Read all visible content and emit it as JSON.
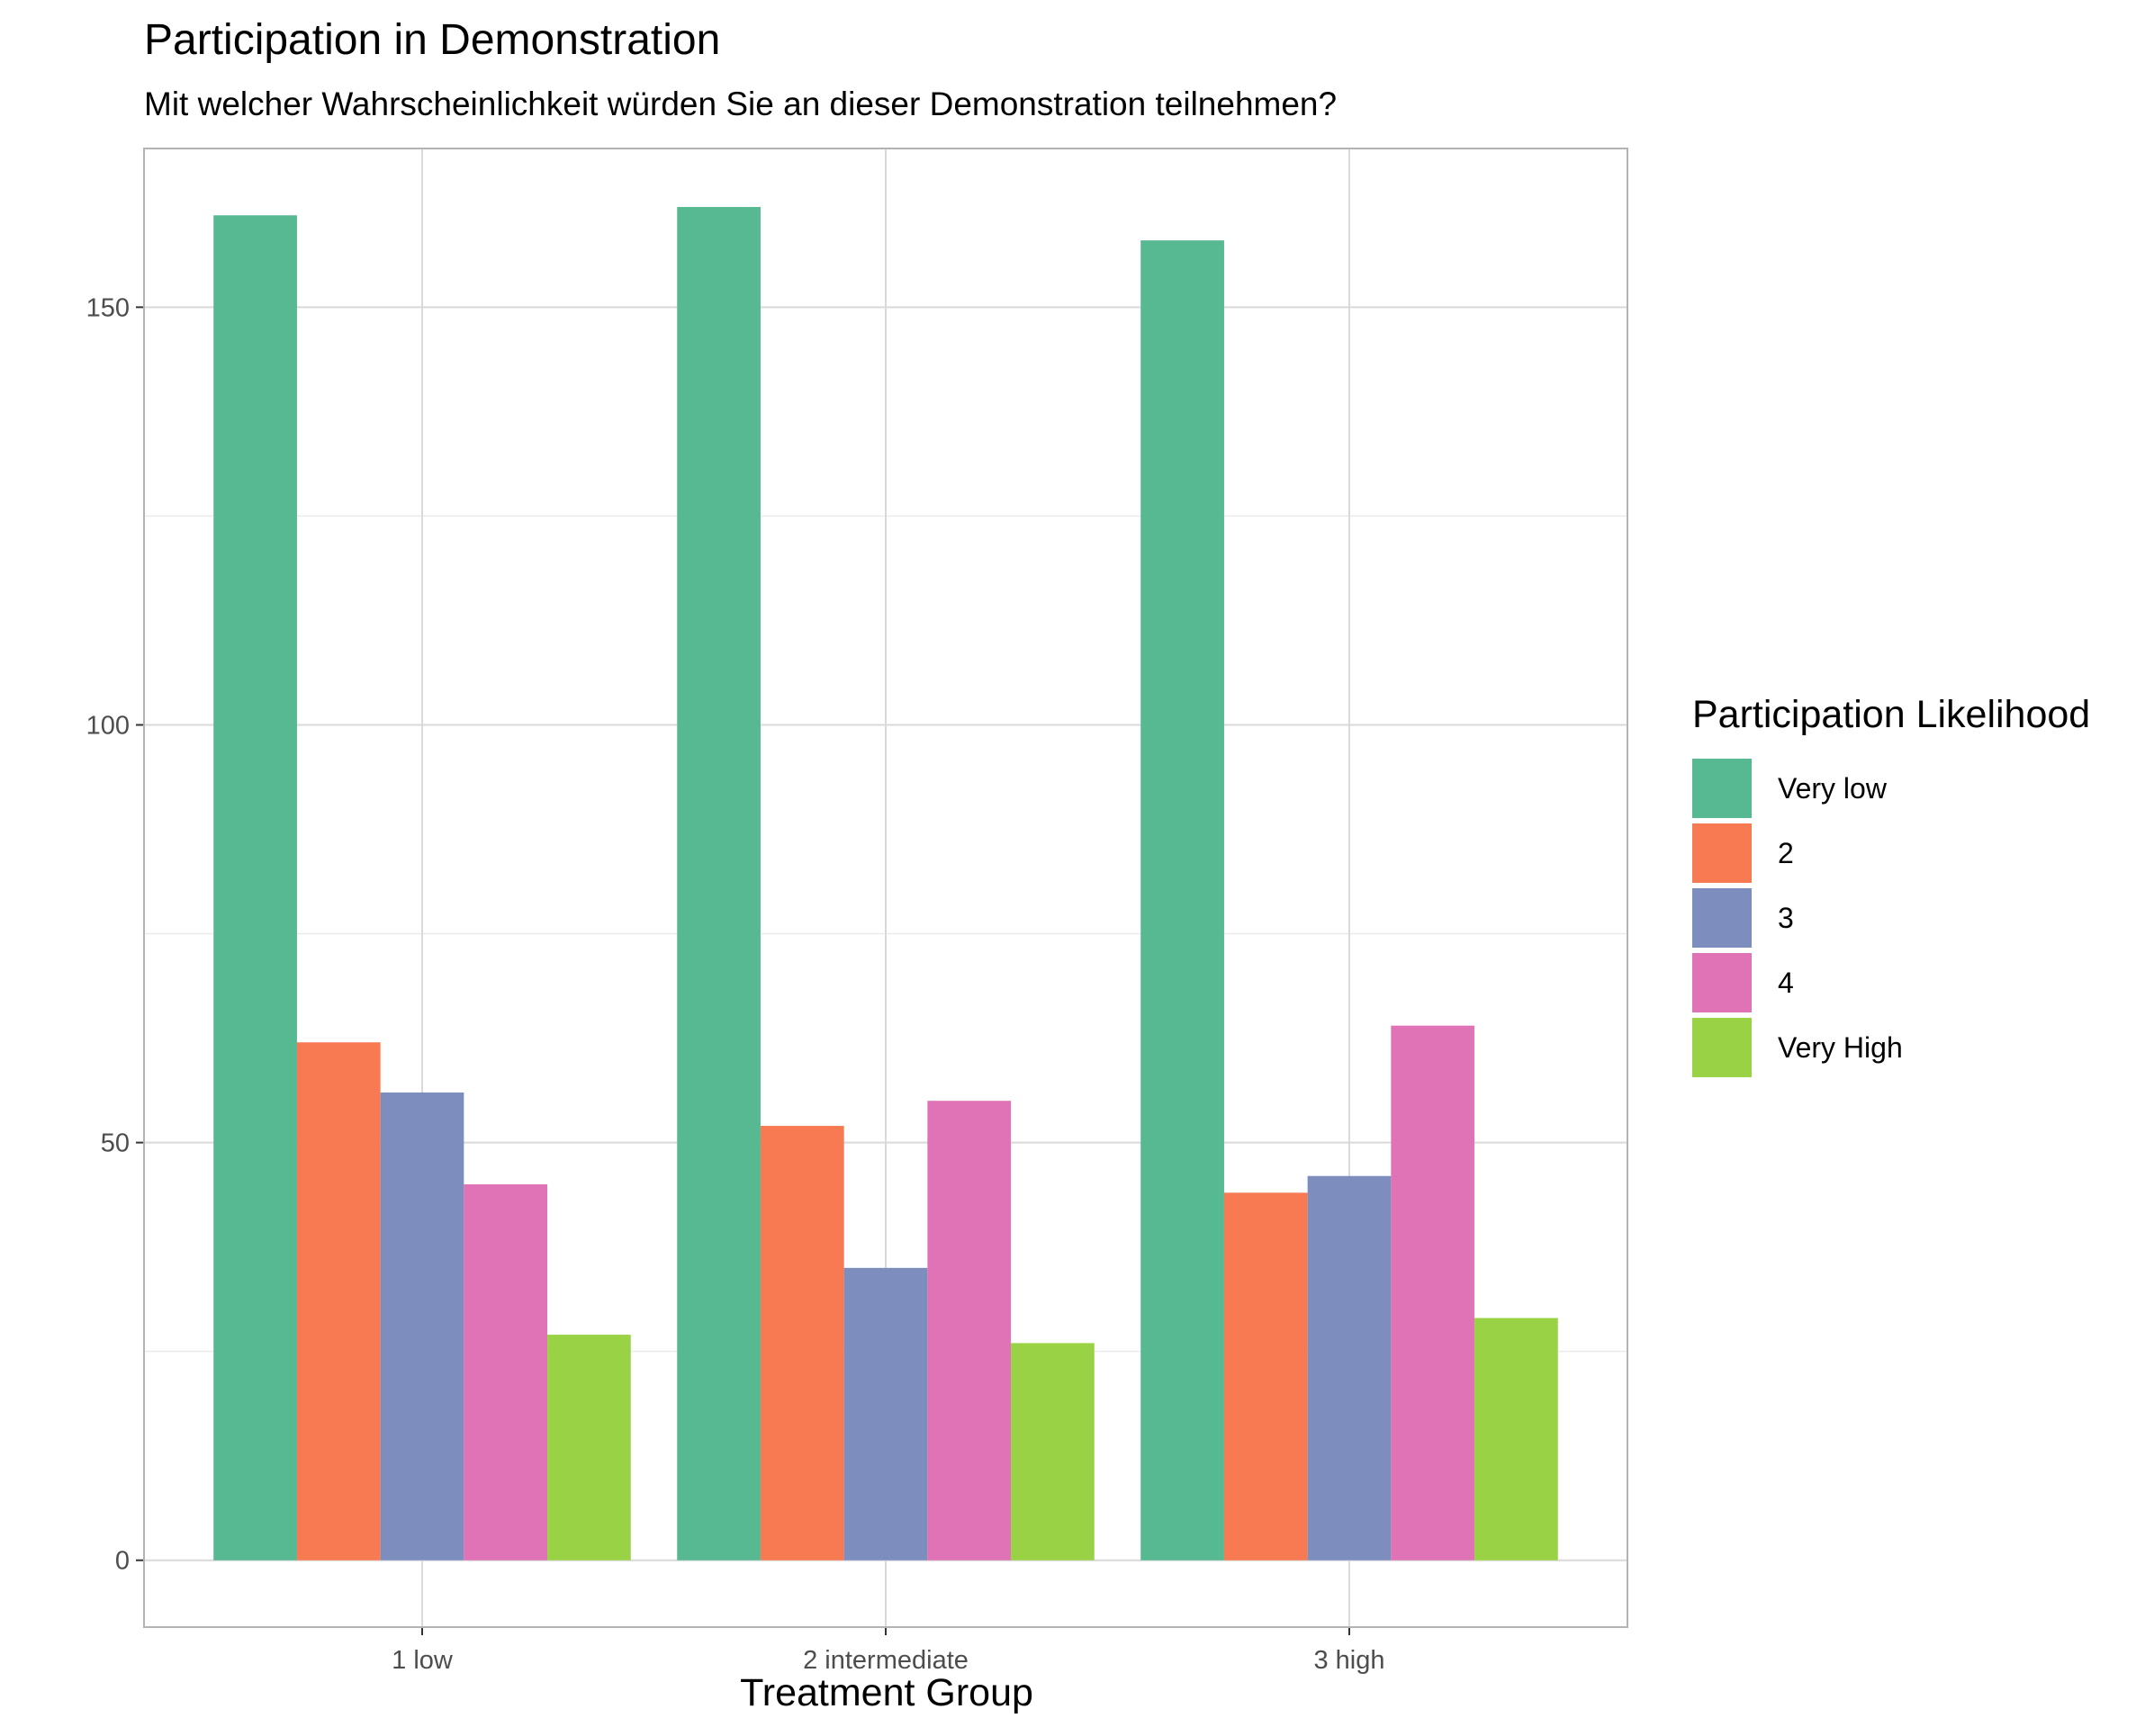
{
  "chart_data": {
    "type": "bar",
    "title": "Participation in Demonstration",
    "subtitle": "Mit welcher Wahrscheinlichkeit würden Sie an dieser Demonstration teilnehmen?",
    "xlabel": "Treatment Group",
    "ylabel": "",
    "categories": [
      "1 low",
      "2 intermediate",
      "3 high"
    ],
    "series": [
      {
        "name": "Very low",
        "values": [
          161,
          162,
          158
        ],
        "color": "#57B991"
      },
      {
        "name": "2",
        "values": [
          62,
          52,
          44
        ],
        "color": "#F77A52"
      },
      {
        "name": "3",
        "values": [
          56,
          35,
          46
        ],
        "color": "#7D8EBE"
      },
      {
        "name": "4",
        "values": [
          45,
          55,
          64
        ],
        "color": "#E073B5"
      },
      {
        "name": "Very High",
        "values": [
          27,
          26,
          29
        ],
        "color": "#99D244"
      }
    ],
    "ylim": [
      -8,
      169
    ],
    "yticks": [
      0,
      50,
      100,
      150
    ],
    "yticks_minor": [
      25,
      75,
      125
    ],
    "grid": true,
    "legend": {
      "title": "Participation Likelihood",
      "placement": "right"
    }
  },
  "colors": {
    "panel_border": "#B3B3B3",
    "grid_major": "#D9D9D9",
    "grid_minor": "#EBEBEB",
    "tick_text": "#4D4D4D"
  }
}
